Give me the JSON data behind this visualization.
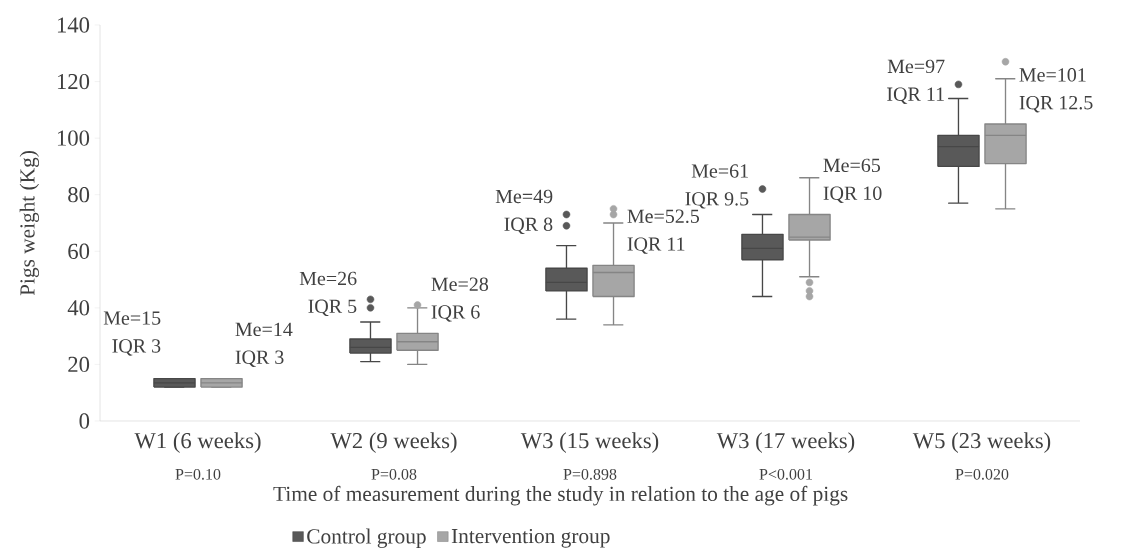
{
  "chart_data": {
    "type": "box",
    "xlabel": "Time of measurement during the study in relation to the age of pigs",
    "ylabel": "Pigs weight (Kg)",
    "categories": [
      "W1 (6 weeks)",
      "W2 (9 weeks)",
      "W3 (15 weeks)",
      "W3 (17 weeks)",
      "W5 (23 weeks)"
    ],
    "ylim": [
      0,
      140
    ],
    "yticks": [
      0,
      20,
      40,
      60,
      80,
      100,
      120,
      140
    ],
    "legend": "bottom",
    "grid": false,
    "series": [
      {
        "name": "Control group",
        "color": "#595959",
        "boxes": [
          {
            "low": 12,
            "q1": 12,
            "median": 13.5,
            "q3": 15,
            "high": 15
          },
          {
            "low": 21,
            "q1": 24,
            "median": 26,
            "q3": 29,
            "high": 35,
            "outliers": [
              40,
              43
            ]
          },
          {
            "low": 36,
            "q1": 46,
            "median": 49,
            "q3": 54,
            "high": 62,
            "outliers": [
              69,
              73
            ]
          },
          {
            "low": 44,
            "q1": 57,
            "median": 61,
            "q3": 66,
            "high": 73,
            "outliers": [
              82
            ]
          },
          {
            "low": 77,
            "q1": 90,
            "median": 97,
            "q3": 101,
            "high": 114,
            "outliers": [
              119
            ]
          }
        ]
      },
      {
        "name": "Intervention group",
        "color": "#a6a6a6",
        "boxes": [
          {
            "low": 12,
            "q1": 12,
            "median": 13.5,
            "q3": 15,
            "high": 15
          },
          {
            "low": 20,
            "q1": 25,
            "median": 28,
            "q3": 31,
            "high": 40,
            "outliers": [
              41
            ]
          },
          {
            "low": 34,
            "q1": 44,
            "median": 52.5,
            "q3": 55,
            "high": 70,
            "outliers": [
              73,
              75
            ]
          },
          {
            "low": 51,
            "q1": 64,
            "median": 65,
            "q3": 73,
            "high": 86,
            "outliers": [
              44,
              46,
              49
            ]
          },
          {
            "low": 75,
            "q1": 91,
            "median": 101,
            "q3": 105,
            "high": 121,
            "outliers": [
              127
            ]
          }
        ]
      }
    ],
    "annotations": [
      "Me=15",
      "IQR 3",
      "Me=14",
      "IQR 3",
      "Me=26",
      "IQR 5",
      "Me=28",
      "IQR 6",
      "Me=49",
      "IQR 8",
      "Me=52.5",
      "IQR 11",
      "Me=61",
      "IQR 9.5",
      "Me=65",
      "IQR 10",
      "Me=97",
      "IQR 11",
      "Me=101",
      "IQR 12.5",
      "P=0.10",
      "P=0.08",
      "P=0.898",
      "P<0.001",
      "P=0.020"
    ]
  }
}
